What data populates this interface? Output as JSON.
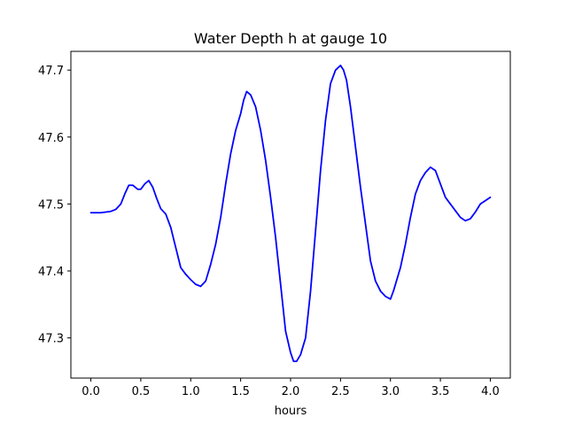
{
  "chart_data": {
    "type": "line",
    "title": "Water Depth h at gauge 10",
    "xlabel": "hours",
    "ylabel": "",
    "xlim": [
      -0.2,
      4.2
    ],
    "ylim": [
      47.24,
      47.728
    ],
    "grid": false,
    "legend": "none",
    "colors": {
      "line": "#0000ff",
      "axes": "#000000",
      "background": "#ffffff"
    },
    "xticks": [
      0.0,
      0.5,
      1.0,
      1.5,
      2.0,
      2.5,
      3.0,
      3.5,
      4.0
    ],
    "xtick_labels": [
      "0.0",
      "0.5",
      "1.0",
      "1.5",
      "2.0",
      "2.5",
      "3.0",
      "3.5",
      "4.0"
    ],
    "yticks": [
      47.3,
      47.4,
      47.5,
      47.6,
      47.7
    ],
    "ytick_labels": [
      "47.3",
      "47.4",
      "47.5",
      "47.6",
      "47.7"
    ],
    "series": [
      {
        "x": [
          0.0,
          0.1,
          0.2,
          0.25,
          0.3,
          0.34,
          0.38,
          0.42,
          0.47,
          0.5,
          0.54,
          0.58,
          0.62,
          0.66,
          0.7,
          0.75,
          0.8,
          0.85,
          0.9,
          0.95,
          1.0,
          1.05,
          1.1,
          1.15,
          1.2,
          1.25,
          1.3,
          1.35,
          1.4,
          1.45,
          1.5,
          1.53,
          1.56,
          1.6,
          1.65,
          1.7,
          1.75,
          1.8,
          1.85,
          1.9,
          1.95,
          2.0,
          2.03,
          2.06,
          2.1,
          2.15,
          2.2,
          2.25,
          2.3,
          2.35,
          2.4,
          2.45,
          2.5,
          2.53,
          2.56,
          2.6,
          2.65,
          2.7,
          2.75,
          2.8,
          2.85,
          2.9,
          2.95,
          3.0,
          3.03,
          3.06,
          3.1,
          3.15,
          3.2,
          3.25,
          3.3,
          3.35,
          3.4,
          3.45,
          3.5,
          3.55,
          3.6,
          3.65,
          3.7,
          3.75,
          3.8,
          3.85,
          3.9,
          3.95,
          4.0
        ],
        "values": [
          47.487,
          47.487,
          47.489,
          47.492,
          47.5,
          47.515,
          47.528,
          47.528,
          47.522,
          47.522,
          47.53,
          47.535,
          47.525,
          47.508,
          47.493,
          47.485,
          47.465,
          47.435,
          47.405,
          47.395,
          47.387,
          47.38,
          47.377,
          47.385,
          47.41,
          47.44,
          47.48,
          47.53,
          47.575,
          47.61,
          47.635,
          47.655,
          47.668,
          47.663,
          47.645,
          47.61,
          47.565,
          47.51,
          47.45,
          47.38,
          47.31,
          47.278,
          47.265,
          47.265,
          47.275,
          47.3,
          47.37,
          47.46,
          47.55,
          47.625,
          47.68,
          47.7,
          47.707,
          47.7,
          47.685,
          47.645,
          47.585,
          47.525,
          47.47,
          47.415,
          47.385,
          47.37,
          47.362,
          47.358,
          47.37,
          47.385,
          47.405,
          47.44,
          47.48,
          47.515,
          47.535,
          47.547,
          47.555,
          47.55,
          47.53,
          47.51,
          47.5,
          47.49,
          47.48,
          47.475,
          47.478,
          47.488,
          47.5,
          47.505,
          47.51
        ]
      }
    ]
  }
}
